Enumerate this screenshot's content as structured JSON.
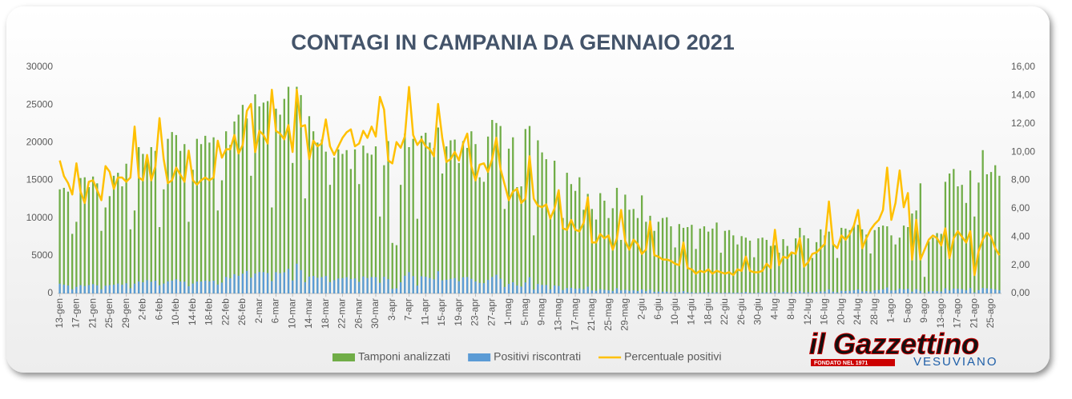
{
  "chart_data": {
    "type": "bar",
    "title": "CONTAGI IN CAMPANIA DA GENNAIO 2021",
    "categories": [
      "13-gen",
      null,
      null,
      null,
      "17-gen",
      null,
      null,
      null,
      "21-gen",
      null,
      null,
      null,
      "25-gen",
      null,
      null,
      null,
      "29-gen",
      null,
      null,
      null,
      "2-feb",
      null,
      null,
      null,
      "6-feb",
      null,
      null,
      null,
      "10-feb",
      null,
      null,
      null,
      "14-feb",
      null,
      null,
      null,
      "18-feb",
      null,
      null,
      null,
      "22-feb",
      null,
      null,
      null,
      "26-feb",
      null,
      null,
      null,
      "2-mar",
      null,
      null,
      null,
      "6-mar",
      null,
      null,
      null,
      "10-mar",
      null,
      null,
      null,
      "14-mar",
      null,
      null,
      null,
      "18-mar",
      null,
      null,
      null,
      "22-mar",
      null,
      null,
      null,
      "26-mar",
      null,
      null,
      null,
      "30-mar",
      null,
      null,
      null,
      "3-apr",
      null,
      null,
      null,
      "7-apr",
      null,
      null,
      null,
      "11-apr",
      null,
      null,
      null,
      "15-apr",
      null,
      null,
      null,
      "19-apr",
      null,
      null,
      null,
      "23-apr",
      null,
      null,
      null,
      "27-apr",
      null,
      null,
      null,
      "1-mag",
      null,
      null,
      null,
      "5-mag",
      null,
      null,
      null,
      "9-mag",
      null,
      null,
      null,
      "13-mag",
      null,
      null,
      null,
      "17-mag",
      null,
      null,
      null,
      "21-mag",
      null,
      null,
      null,
      "25-mag",
      null,
      null,
      null,
      "29-mag",
      null,
      null,
      null,
      "2-giu",
      null,
      null,
      null,
      "6-giu",
      null,
      null,
      null,
      "10-giu",
      null,
      null,
      null,
      "14-giu",
      null,
      null,
      null,
      "18-giu",
      null,
      null,
      null,
      "22-giu",
      null,
      null,
      null,
      "26-giu",
      null,
      null,
      null,
      "30-giu",
      null,
      null,
      null,
      "4-lug",
      null,
      null,
      null,
      "8-lug",
      null,
      null,
      null,
      "12-lug",
      null,
      null,
      null,
      "16-lug",
      null,
      null,
      null,
      "20-lug",
      null,
      null,
      null,
      "24-lug",
      null,
      null,
      null,
      "28-lug",
      null,
      null,
      null,
      "1-ago",
      null,
      null,
      null,
      "5-ago",
      null,
      null,
      null,
      "9-ago",
      null,
      null,
      null,
      "13-ago",
      null,
      null,
      null,
      "17-ago",
      null,
      null,
      null,
      "21-ago",
      null,
      null,
      null,
      "25-ago",
      null,
      null
    ],
    "series": [
      {
        "name": "Tamponi analizzati",
        "color": "#70ad47",
        "type": "bar",
        "values": [
          13800,
          14000,
          13500,
          7900,
          9500,
          15300,
          15400,
          14100,
          15500,
          14600,
          8300,
          11400,
          12900,
          15600,
          16000,
          14200,
          17200,
          8500,
          11000,
          19400,
          18500,
          18000,
          19400,
          18900,
          8800,
          13800,
          20500,
          21400,
          21000,
          18900,
          19800,
          9500,
          16400,
          20500,
          19800,
          20900,
          20000,
          20700,
          11000,
          15000,
          21500,
          19700,
          22800,
          23700,
          25000,
          23200,
          15600,
          26400,
          24800,
          25300,
          25500,
          11400,
          24500,
          23700,
          25800,
          27400,
          17300,
          27400,
          26300,
          12600,
          23500,
          21500,
          20000,
          20400,
          18800,
          14400,
          18000,
          19100,
          18500,
          19000,
          16500,
          19100,
          14500,
          19600,
          18600,
          18400,
          19500,
          10200,
          17000,
          20200,
          6700,
          6400,
          14400,
          21200,
          19400,
          20500,
          9900,
          20900,
          21300,
          20000,
          19300,
          22000,
          15900,
          19500,
          20300,
          20400,
          17300,
          20200,
          19300,
          21500,
          19800,
          15400,
          14800,
          20800,
          23000,
          22600,
          22200,
          11200,
          19200,
          20700,
          14100,
          14200,
          21800,
          22200,
          7700,
          20300,
          18700,
          17800,
          10400,
          17600,
          13700,
          10000,
          16000,
          14500,
          13600,
          15400,
          11100,
          13200,
          11200,
          9800,
          13300,
          12300,
          10000,
          11300,
          14000,
          7100,
          13100,
          11100,
          11200,
          10000,
          13000,
          9500,
          10300,
          8300,
          9500,
          10000,
          10100,
          8900,
          6100,
          9200,
          8700,
          8800,
          9100,
          5900,
          8600,
          8900,
          8200,
          8600,
          9400,
          5400,
          8300,
          8400,
          7700,
          6500,
          7600,
          7400,
          7000,
          4800,
          7300,
          7400,
          7100,
          6300,
          6400,
          5400,
          7200,
          6300,
          5500,
          7300,
          8700,
          7700,
          7300,
          4700,
          6800,
          8500,
          7700,
          8200,
          6700,
          4700,
          8700,
          8600,
          8400,
          9000,
          9100,
          8500,
          7800,
          5300,
          8400,
          8800,
          9000,
          8900,
          7700,
          6500,
          7400,
          9000,
          8800,
          10600,
          11000,
          14600,
          2200,
          6900,
          7400,
          8000,
          7900,
          14800,
          15900,
          16500,
          14200,
          14400,
          12000,
          16300,
          10200,
          14700,
          19000,
          15800,
          16100,
          17000,
          15600
        ]
      },
      {
        "name": "Positivi riscontrati",
        "color": "#5b9bd5",
        "type": "bar",
        "values": [
          1297,
          1162,
          1053,
          553,
          874,
          1102,
          986,
          1114,
          1240,
          1066,
          548,
          1026,
          1109,
          1154,
          1312,
          1164,
          1359,
          697,
          1298,
          1591,
          1480,
          1764,
          1552,
          1701,
          1091,
          1311,
          1599,
          1712,
          1869,
          1588,
          1564,
          960,
          1312,
          1579,
          1584,
          1714,
          1600,
          1697,
          1188,
          1440,
          2193,
          2009,
          2554,
          2346,
          2625,
          2993,
          2090,
          2640,
          2852,
          2834,
          2703,
          1642,
          2818,
          2678,
          2812,
          3261,
          1730,
          3946,
          3103,
          1499,
          2233,
          2322,
          2080,
          2162,
          2312,
          1498,
          1764,
          1986,
          2035,
          2166,
          1914,
          1986,
          1537,
          2254,
          2046,
          2171,
          2165,
          1418,
          2210,
          1899,
          616,
          685,
          1483,
          2353,
          2832,
          2296,
          1040,
          2278,
          2215,
          2040,
          1872,
          2948,
          1749,
          1814,
          1929,
          2040,
          1626,
          2141,
          2181,
          1935,
          1584,
          1401,
          1362,
          1789,
          2185,
          2486,
          1954,
          862,
          1267,
          1490,
          1043,
          909,
          1461,
          2153,
          516,
          1259,
          1141,
          1121,
          551,
          1056,
          1000,
          460,
          720,
          754,
          612,
          678,
          555,
          898,
          403,
          353,
          559,
          480,
          410,
          342,
          700,
          412,
          485,
          344,
          428,
          320,
          533,
          295,
          507,
          224,
          247,
          240,
          242,
          205,
          128,
          184,
          313,
          158,
          155,
          83,
          138,
          134,
          139,
          120,
          150,
          81,
          116,
          126,
          100,
          111,
          122,
          192,
          112,
          72,
          110,
          118,
          149,
          113,
          288,
          108,
          187,
          158,
          160,
          204,
          339,
          146,
          161,
          132,
          197,
          272,
          270,
          533,
          235,
          150,
          357,
          323,
          353,
          432,
          537,
          272,
          304,
          239,
          412,
          458,
          531,
          792,
          400,
          416,
          644,
          549,
          625,
          254,
          572,
          350,
          68,
          262,
          303,
          312,
          269,
          681,
          398,
          644,
          625,
          576,
          432,
          717,
          133,
          441,
          722,
          679,
          644,
          544,
          421
        ]
      },
      {
        "name": "Percentuale positivi",
        "color": "#ffc000",
        "type": "line",
        "axis": "y2",
        "values": [
          9.4,
          8.3,
          7.8,
          7.0,
          9.2,
          7.2,
          6.4,
          7.9,
          8.0,
          7.3,
          6.6,
          9.0,
          8.6,
          7.4,
          8.2,
          8.2,
          7.9,
          8.2,
          11.8,
          8.2,
          8.0,
          9.8,
          8.0,
          9.0,
          12.4,
          9.5,
          7.8,
          8.0,
          8.9,
          8.4,
          7.9,
          10.1,
          8.0,
          7.7,
          8.0,
          8.2,
          8.0,
          8.2,
          10.8,
          9.6,
          10.2,
          10.2,
          11.2,
          9.9,
          10.5,
          12.9,
          13.4,
          10.0,
          11.5,
          11.2,
          10.6,
          14.4,
          11.5,
          11.3,
          10.9,
          11.9,
          10.0,
          14.4,
          11.8,
          11.9,
          9.5,
          10.8,
          10.4,
          10.6,
          12.3,
          10.4,
          9.8,
          10.4,
          11.0,
          11.4,
          11.6,
          10.4,
          10.6,
          11.5,
          11.0,
          11.8,
          11.1,
          13.9,
          13.0,
          9.4,
          9.2,
          10.7,
          10.3,
          11.1,
          14.6,
          11.2,
          10.5,
          10.9,
          10.4,
          10.2,
          9.7,
          13.4,
          11.0,
          9.3,
          9.5,
          10.0,
          9.4,
          10.6,
          11.3,
          9.0,
          8.0,
          9.1,
          9.2,
          8.6,
          9.5,
          11.0,
          8.8,
          7.7,
          6.6,
          7.2,
          7.4,
          6.4,
          6.7,
          9.7,
          6.7,
          6.2,
          6.1,
          6.3,
          5.3,
          6.0,
          7.3,
          4.6,
          4.5,
          5.2,
          4.5,
          4.4,
          5.0,
          6.8,
          3.6,
          3.6,
          4.2,
          3.9,
          4.1,
          3.1,
          3.9,
          5.9,
          3.7,
          3.1,
          3.8,
          3.5,
          2.8,
          3.1,
          5.1,
          2.7,
          2.6,
          2.4,
          2.4,
          2.3,
          2.1,
          2.0,
          3.6,
          1.8,
          1.7,
          1.4,
          1.6,
          1.5,
          1.7,
          1.4,
          1.6,
          1.5,
          1.4,
          1.5,
          1.3,
          1.7,
          1.6,
          2.6,
          1.6,
          1.5,
          1.5,
          1.6,
          2.1,
          1.8,
          4.5,
          2.0,
          2.6,
          2.5,
          2.9,
          2.8,
          3.9,
          1.9,
          2.2,
          2.8,
          2.9,
          3.2,
          3.5,
          6.5,
          3.5,
          3.2,
          4.1,
          3.8,
          4.2,
          4.8,
          5.9,
          3.2,
          3.9,
          4.5,
          4.9,
          5.2,
          5.9,
          8.9,
          5.2,
          6.4,
          8.7,
          6.1,
          7.1,
          2.4,
          5.2,
          2.4,
          3.1,
          3.8,
          4.1,
          3.9,
          3.4,
          4.6,
          2.5,
          3.9,
          4.4,
          4.0,
          3.6,
          4.4,
          1.3,
          3.0,
          3.8,
          4.3,
          4.0,
          3.2,
          2.7
        ]
      }
    ],
    "ylim": [
      0,
      30000
    ],
    "yticks": [
      0,
      5000,
      10000,
      15000,
      20000,
      25000,
      30000
    ],
    "y2lim": [
      0,
      16
    ],
    "y2ticks": [
      {
        "value": 0,
        "label": "0,00"
      },
      {
        "value": 2,
        "label": "2,00"
      },
      {
        "value": 4,
        "label": "4,00"
      },
      {
        "value": 6,
        "label": "6,00"
      },
      {
        "value": 8,
        "label": "8,00"
      },
      {
        "value": 10,
        "label": "10,00"
      },
      {
        "value": 12,
        "label": "12,00"
      },
      {
        "value": 14,
        "label": "14,00"
      },
      {
        "value": 16,
        "label": "16,00"
      }
    ],
    "grid": false,
    "legend": "bottom"
  },
  "logo": {
    "name": "il Gazzettino",
    "note": "FONDATO NEL 1971",
    "tagline": "VESUVIANO"
  }
}
